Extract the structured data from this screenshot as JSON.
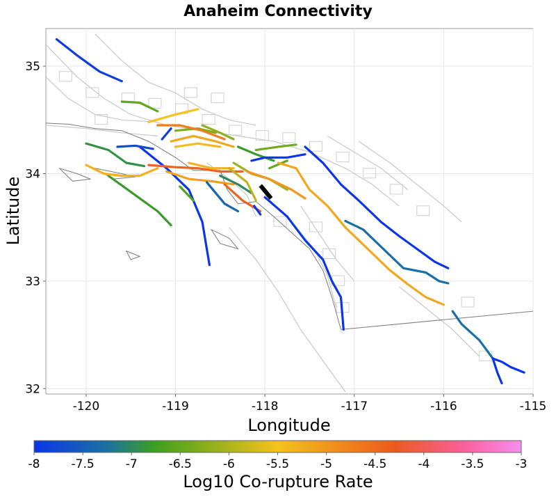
{
  "chart_data": {
    "type": "map",
    "title": "Anaheim Connectivity",
    "xlabel": "Longitude",
    "ylabel": "Latitude",
    "xlim": [
      -120.45,
      -115.0
    ],
    "ylim": [
      31.95,
      35.35
    ],
    "x_ticks": [
      "-120",
      "-119",
      "-118",
      "-117",
      "-116",
      "-115"
    ],
    "x_tick_values": [
      -120,
      -119,
      -118,
      -117,
      -116,
      -115
    ],
    "y_ticks": [
      "35",
      "34",
      "33",
      "32"
    ],
    "y_tick_values": [
      35,
      34,
      33,
      32
    ],
    "grid": true,
    "colorbar": {
      "label": "Log10 Co-rupture Rate",
      "range": [
        -8,
        -3
      ],
      "ticks": [
        "-8",
        "-7.5",
        "-7",
        "-6.5",
        "-6",
        "-5.5",
        "-5",
        "-4.5",
        "-4",
        "-3.5",
        "-3"
      ],
      "tick_values": [
        -8,
        -7.5,
        -7,
        -6.5,
        -6,
        -5.5,
        -5,
        -4.5,
        -4,
        -3.5,
        -3
      ],
      "colors": [
        "#0b35e8",
        "#1a72a0",
        "#3ea01e",
        "#f5c21e",
        "#ea5a1e",
        "#f8609a",
        "#f78ef0"
      ],
      "color_stops": [
        -8,
        -7.25,
        -6.75,
        -5.5,
        -4.3,
        -3.6,
        -3
      ]
    },
    "highlight_color": "#000000",
    "highlighted_fault": [
      [
        -118.05,
        33.89
      ],
      [
        -117.93,
        33.77
      ]
    ],
    "series": [
      {
        "rate": -7.9,
        "points": [
          [
            -120.33,
            35.25
          ],
          [
            -120.1,
            35.1
          ],
          [
            -119.85,
            34.95
          ],
          [
            -119.6,
            34.86
          ]
        ]
      },
      {
        "rate": -8.0,
        "points": [
          [
            -119.4,
            34.25
          ],
          [
            -119.1,
            34.05
          ],
          [
            -118.85,
            33.85
          ],
          [
            -118.7,
            33.55
          ],
          [
            -118.62,
            33.15
          ]
        ]
      },
      {
        "rate": -6.8,
        "points": [
          [
            -119.75,
            33.98
          ],
          [
            -119.45,
            33.8
          ],
          [
            -119.2,
            33.65
          ],
          [
            -119.05,
            33.52
          ]
        ]
      },
      {
        "rate": -6.9,
        "points": [
          [
            -120.0,
            34.28
          ],
          [
            -119.75,
            34.22
          ],
          [
            -119.55,
            34.1
          ],
          [
            -119.35,
            34.07
          ]
        ]
      },
      {
        "rate": -6.5,
        "points": [
          [
            -119.6,
            34.67
          ],
          [
            -119.4,
            34.66
          ],
          [
            -119.2,
            34.58
          ]
        ]
      },
      {
        "rate": -5.5,
        "points": [
          [
            -119.3,
            34.48
          ],
          [
            -119.0,
            34.55
          ],
          [
            -118.75,
            34.6
          ]
        ]
      },
      {
        "rate": -7.7,
        "points": [
          [
            -119.65,
            34.25
          ],
          [
            -119.45,
            34.26
          ],
          [
            -119.25,
            34.23
          ]
        ]
      },
      {
        "rate": -7.9,
        "points": [
          [
            -119.15,
            34.32
          ],
          [
            -119.05,
            34.42
          ]
        ]
      },
      {
        "rate": -6.3,
        "points": [
          [
            -119.0,
            34.4
          ],
          [
            -118.75,
            34.42
          ],
          [
            -118.55,
            34.38
          ]
        ]
      },
      {
        "rate": -5.2,
        "points": [
          [
            -119.05,
            34.3
          ],
          [
            -118.8,
            34.35
          ],
          [
            -118.55,
            34.3
          ],
          [
            -118.35,
            34.25
          ]
        ]
      },
      {
        "rate": -4.7,
        "points": [
          [
            -119.2,
            34.45
          ],
          [
            -118.95,
            34.45
          ],
          [
            -118.7,
            34.4
          ],
          [
            -118.45,
            34.32
          ]
        ]
      },
      {
        "rate": -5.4,
        "points": [
          [
            -119.0,
            34.25
          ],
          [
            -118.75,
            34.28
          ],
          [
            -118.5,
            34.25
          ]
        ]
      },
      {
        "rate": -6.2,
        "points": [
          [
            -118.7,
            34.45
          ],
          [
            -118.5,
            34.38
          ],
          [
            -118.35,
            34.32
          ]
        ]
      },
      {
        "rate": -5.3,
        "points": [
          [
            -120.0,
            34.08
          ],
          [
            -119.8,
            34.0
          ],
          [
            -119.6,
            33.98
          ],
          [
            -119.4,
            33.98
          ],
          [
            -119.2,
            34.05
          ]
        ]
      },
      {
        "rate": -5.1,
        "points": [
          [
            -119.1,
            34.02
          ],
          [
            -118.85,
            33.95
          ],
          [
            -118.6,
            33.93
          ],
          [
            -118.35,
            33.9
          ]
        ]
      },
      {
        "rate": -4.4,
        "points": [
          [
            -119.3,
            34.08
          ],
          [
            -119.0,
            34.06
          ],
          [
            -118.75,
            34.05
          ],
          [
            -118.5,
            34.02
          ],
          [
            -118.25,
            34.02
          ]
        ]
      },
      {
        "rate": -5.3,
        "points": [
          [
            -118.85,
            34.1
          ],
          [
            -118.6,
            34.05
          ],
          [
            -118.35,
            34.05
          ]
        ]
      },
      {
        "rate": -6.6,
        "points": [
          [
            -118.95,
            33.88
          ],
          [
            -118.8,
            33.75
          ]
        ]
      },
      {
        "rate": -7.4,
        "points": [
          [
            -118.65,
            33.92
          ],
          [
            -118.45,
            33.72
          ],
          [
            -118.3,
            33.65
          ]
        ]
      },
      {
        "rate": -4.4,
        "points": [
          [
            -118.45,
            33.9
          ],
          [
            -118.25,
            33.75
          ],
          [
            -118.05,
            33.65
          ]
        ]
      },
      {
        "rate": -7.0,
        "points": [
          [
            -118.5,
            33.98
          ],
          [
            -118.3,
            33.9
          ],
          [
            -118.15,
            33.82
          ]
        ]
      },
      {
        "rate": -5.9,
        "points": [
          [
            -118.4,
            34.05
          ],
          [
            -118.2,
            33.92
          ],
          [
            -118.1,
            33.75
          ]
        ]
      },
      {
        "rate": -8.0,
        "points": [
          [
            -118.12,
            33.7
          ],
          [
            -118.05,
            33.62
          ]
        ]
      },
      {
        "rate": -6.1,
        "points": [
          [
            -118.35,
            34.1
          ],
          [
            -118.15,
            34.0
          ],
          [
            -117.95,
            33.95
          ],
          [
            -117.75,
            33.85
          ]
        ]
      },
      {
        "rate": -5.0,
        "points": [
          [
            -118.2,
            34.02
          ],
          [
            -117.95,
            33.95
          ],
          [
            -117.7,
            33.85
          ],
          [
            -117.55,
            33.77
          ]
        ]
      },
      {
        "rate": -6.8,
        "points": [
          [
            -118.3,
            34.25
          ],
          [
            -118.1,
            34.18
          ],
          [
            -117.9,
            34.12
          ]
        ]
      },
      {
        "rate": -8.0,
        "points": [
          [
            -118.15,
            34.12
          ],
          [
            -118.0,
            34.15
          ],
          [
            -117.75,
            34.15
          ],
          [
            -117.55,
            34.18
          ]
        ]
      },
      {
        "rate": -6.4,
        "points": [
          [
            -118.1,
            34.22
          ],
          [
            -117.85,
            34.25
          ],
          [
            -117.65,
            34.27
          ]
        ]
      },
      {
        "rate": -6.5,
        "points": [
          [
            -117.95,
            34.05
          ],
          [
            -117.75,
            34.12
          ]
        ]
      },
      {
        "rate": -5.2,
        "points": [
          [
            -117.85,
            34.1
          ],
          [
            -117.65,
            34.05
          ],
          [
            -117.5,
            33.85
          ],
          [
            -117.3,
            33.7
          ],
          [
            -117.1,
            33.5
          ],
          [
            -116.85,
            33.3
          ],
          [
            -116.6,
            33.1
          ],
          [
            -116.4,
            32.97
          ],
          [
            -116.2,
            32.85
          ],
          [
            -116.0,
            32.78
          ]
        ]
      },
      {
        "rate": -8.0,
        "points": [
          [
            -117.55,
            34.25
          ],
          [
            -117.35,
            34.1
          ],
          [
            -117.15,
            33.9
          ],
          [
            -116.95,
            33.75
          ],
          [
            -116.7,
            33.55
          ],
          [
            -116.5,
            33.42
          ],
          [
            -116.3,
            33.3
          ],
          [
            -116.1,
            33.18
          ],
          [
            -115.95,
            33.12
          ]
        ]
      },
      {
        "rate": -7.3,
        "points": [
          [
            -117.1,
            33.56
          ],
          [
            -116.9,
            33.48
          ],
          [
            -116.7,
            33.32
          ],
          [
            -116.45,
            33.12
          ],
          [
            -116.2,
            33.08
          ],
          [
            -116.05,
            33.0
          ],
          [
            -115.95,
            32.98
          ]
        ]
      },
      {
        "rate": -8.0,
        "points": [
          [
            -118.0,
            33.78
          ],
          [
            -117.75,
            33.6
          ],
          [
            -117.55,
            33.38
          ],
          [
            -117.35,
            33.2
          ],
          [
            -117.25,
            33.0
          ],
          [
            -117.15,
            32.85
          ],
          [
            -117.12,
            32.55
          ]
        ]
      },
      {
        "rate": -7.3,
        "points": [
          [
            -115.9,
            32.72
          ],
          [
            -115.8,
            32.6
          ],
          [
            -115.6,
            32.45
          ],
          [
            -115.45,
            32.28
          ]
        ]
      },
      {
        "rate": -8.0,
        "points": [
          [
            -115.45,
            32.28
          ],
          [
            -115.35,
            32.25
          ],
          [
            -115.25,
            32.2
          ],
          [
            -115.1,
            32.15
          ]
        ]
      },
      {
        "rate": -8.0,
        "points": [
          [
            -115.45,
            32.28
          ],
          [
            -115.4,
            32.15
          ],
          [
            -115.35,
            32.05
          ]
        ]
      }
    ]
  }
}
